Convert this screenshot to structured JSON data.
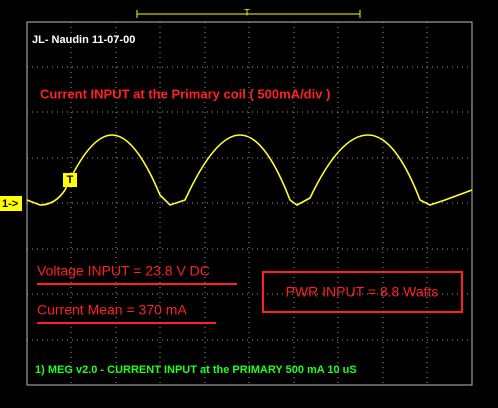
{
  "screen": {
    "author": "JL- Naudin 11-07-00",
    "trace_title": "Current INPUT at the Primary coil ( 500mA/div )",
    "voltage": "Voltage INPUT = 23.8 V DC",
    "current": "Current Mean = 370 mA",
    "power": "PWR INPUT = 8.8 Watts",
    "channel_info": "1) MEG v2.0 - CURRENT INPUT at the PRIMARY 500 mA 10 uS",
    "channel_marker": "1->",
    "trigger_marker": "T",
    "timebase_marker": "T"
  }
}
